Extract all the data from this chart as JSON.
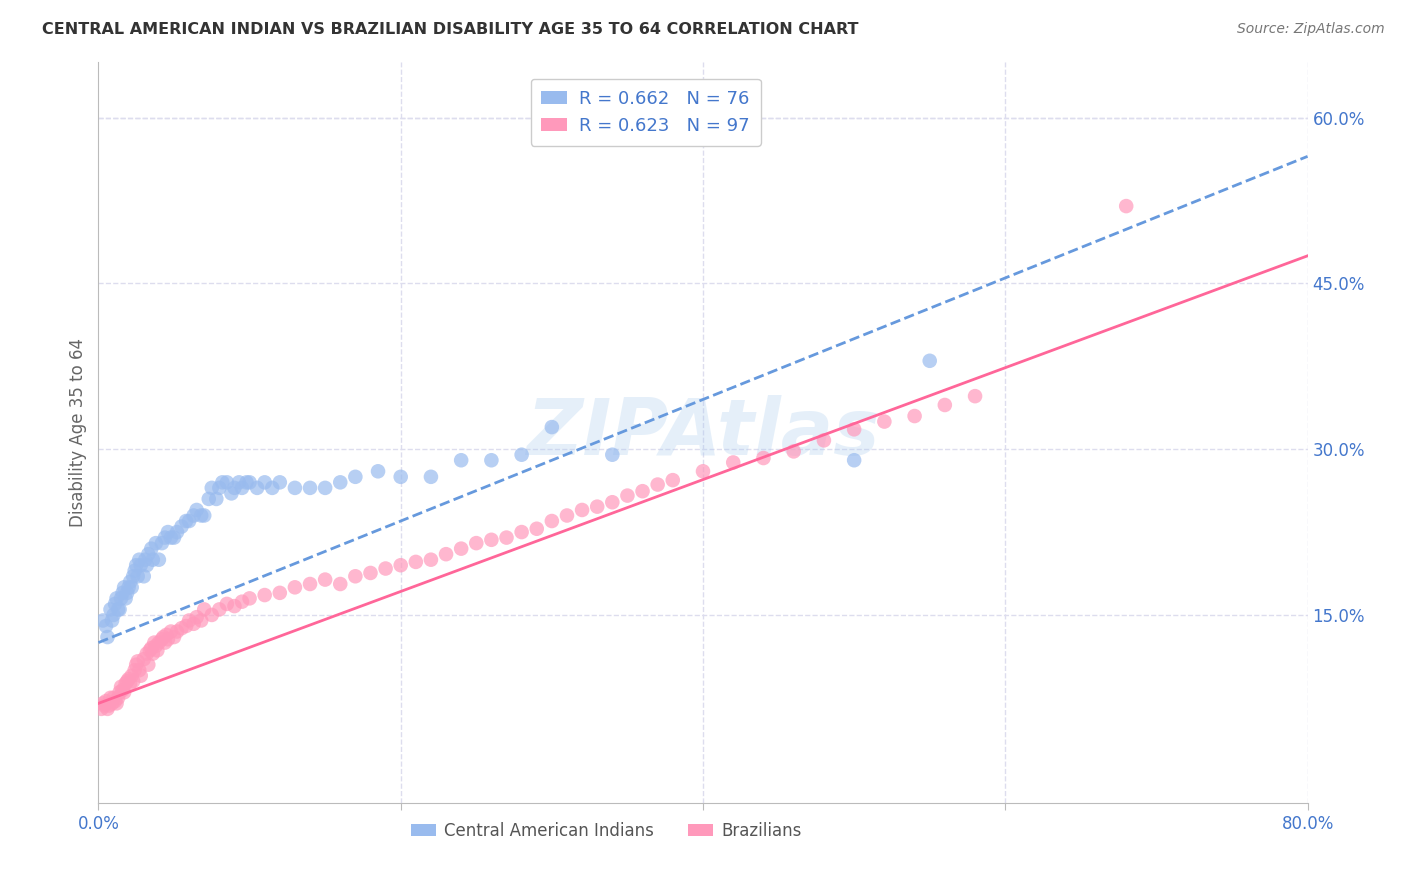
{
  "title": "CENTRAL AMERICAN INDIAN VS BRAZILIAN DISABILITY AGE 35 TO 64 CORRELATION CHART",
  "source": "Source: ZipAtlas.com",
  "ylabel": "Disability Age 35 to 64",
  "xlim": [
    0.0,
    0.8
  ],
  "ylim": [
    -0.02,
    0.65
  ],
  "yticks_right": [
    0.0,
    0.15,
    0.3,
    0.45,
    0.6
  ],
  "yticklabels_right": [
    "",
    "15.0%",
    "30.0%",
    "45.0%",
    "60.0%"
  ],
  "xtick_positions": [
    0.0,
    0.2,
    0.4,
    0.6,
    0.8
  ],
  "xticklabels": [
    "0.0%",
    "",
    "",
    "",
    "80.0%"
  ],
  "legend_blue_r": "0.662",
  "legend_blue_n": "76",
  "legend_pink_r": "0.623",
  "legend_pink_n": "97",
  "blue_scatter_color": "#99BBEE",
  "pink_scatter_color": "#FF99BB",
  "blue_line_color": "#6699DD",
  "pink_line_color": "#FF6699",
  "axis_tick_color": "#4477CC",
  "grid_color": "#DDDDEE",
  "watermark": "ZIPAtlas",
  "watermark_color": "#AACCEE",
  "blue_line_x": [
    0.0,
    0.8
  ],
  "blue_line_y": [
    0.125,
    0.565
  ],
  "pink_line_x": [
    0.0,
    0.8
  ],
  "pink_line_y": [
    0.07,
    0.475
  ],
  "blue_points_x": [
    0.003,
    0.005,
    0.006,
    0.008,
    0.009,
    0.01,
    0.011,
    0.012,
    0.013,
    0.014,
    0.015,
    0.016,
    0.017,
    0.018,
    0.019,
    0.02,
    0.021,
    0.022,
    0.023,
    0.024,
    0.025,
    0.026,
    0.027,
    0.028,
    0.03,
    0.031,
    0.032,
    0.033,
    0.035,
    0.036,
    0.038,
    0.04,
    0.042,
    0.044,
    0.046,
    0.048,
    0.05,
    0.052,
    0.055,
    0.058,
    0.06,
    0.063,
    0.065,
    0.068,
    0.07,
    0.073,
    0.075,
    0.078,
    0.08,
    0.082,
    0.085,
    0.088,
    0.09,
    0.093,
    0.095,
    0.098,
    0.1,
    0.105,
    0.11,
    0.115,
    0.12,
    0.13,
    0.14,
    0.15,
    0.16,
    0.17,
    0.185,
    0.2,
    0.22,
    0.24,
    0.26,
    0.28,
    0.3,
    0.34,
    0.5,
    0.55
  ],
  "blue_points_y": [
    0.145,
    0.14,
    0.13,
    0.155,
    0.145,
    0.15,
    0.16,
    0.165,
    0.155,
    0.155,
    0.165,
    0.17,
    0.175,
    0.165,
    0.17,
    0.175,
    0.18,
    0.175,
    0.185,
    0.19,
    0.195,
    0.185,
    0.2,
    0.195,
    0.185,
    0.2,
    0.195,
    0.205,
    0.21,
    0.2,
    0.215,
    0.2,
    0.215,
    0.22,
    0.225,
    0.22,
    0.22,
    0.225,
    0.23,
    0.235,
    0.235,
    0.24,
    0.245,
    0.24,
    0.24,
    0.255,
    0.265,
    0.255,
    0.265,
    0.27,
    0.27,
    0.26,
    0.265,
    0.27,
    0.265,
    0.27,
    0.27,
    0.265,
    0.27,
    0.265,
    0.27,
    0.265,
    0.265,
    0.265,
    0.27,
    0.275,
    0.28,
    0.275,
    0.275,
    0.29,
    0.29,
    0.295,
    0.32,
    0.295,
    0.29,
    0.38
  ],
  "pink_points_x": [
    0.002,
    0.003,
    0.004,
    0.005,
    0.006,
    0.007,
    0.008,
    0.009,
    0.01,
    0.011,
    0.012,
    0.013,
    0.014,
    0.015,
    0.016,
    0.017,
    0.018,
    0.019,
    0.02,
    0.021,
    0.022,
    0.023,
    0.024,
    0.025,
    0.026,
    0.027,
    0.028,
    0.03,
    0.032,
    0.033,
    0.034,
    0.035,
    0.036,
    0.037,
    0.038,
    0.039,
    0.04,
    0.042,
    0.043,
    0.044,
    0.045,
    0.046,
    0.048,
    0.05,
    0.052,
    0.055,
    0.058,
    0.06,
    0.063,
    0.065,
    0.068,
    0.07,
    0.075,
    0.08,
    0.085,
    0.09,
    0.095,
    0.1,
    0.11,
    0.12,
    0.13,
    0.14,
    0.15,
    0.16,
    0.17,
    0.18,
    0.19,
    0.2,
    0.21,
    0.22,
    0.23,
    0.24,
    0.25,
    0.26,
    0.27,
    0.28,
    0.29,
    0.3,
    0.31,
    0.32,
    0.33,
    0.34,
    0.35,
    0.36,
    0.37,
    0.38,
    0.4,
    0.42,
    0.44,
    0.46,
    0.48,
    0.5,
    0.52,
    0.54,
    0.56,
    0.58,
    0.68
  ],
  "pink_points_y": [
    0.065,
    0.07,
    0.068,
    0.072,
    0.065,
    0.068,
    0.075,
    0.07,
    0.075,
    0.072,
    0.07,
    0.075,
    0.08,
    0.085,
    0.082,
    0.08,
    0.088,
    0.09,
    0.092,
    0.088,
    0.095,
    0.09,
    0.1,
    0.105,
    0.108,
    0.1,
    0.095,
    0.11,
    0.115,
    0.105,
    0.118,
    0.12,
    0.115,
    0.125,
    0.122,
    0.118,
    0.125,
    0.128,
    0.13,
    0.125,
    0.132,
    0.128,
    0.135,
    0.13,
    0.135,
    0.138,
    0.14,
    0.145,
    0.142,
    0.148,
    0.145,
    0.155,
    0.15,
    0.155,
    0.16,
    0.158,
    0.162,
    0.165,
    0.168,
    0.17,
    0.175,
    0.178,
    0.182,
    0.178,
    0.185,
    0.188,
    0.192,
    0.195,
    0.198,
    0.2,
    0.205,
    0.21,
    0.215,
    0.218,
    0.22,
    0.225,
    0.228,
    0.235,
    0.24,
    0.245,
    0.248,
    0.252,
    0.258,
    0.262,
    0.268,
    0.272,
    0.28,
    0.288,
    0.292,
    0.298,
    0.308,
    0.318,
    0.325,
    0.33,
    0.34,
    0.348,
    0.52
  ]
}
